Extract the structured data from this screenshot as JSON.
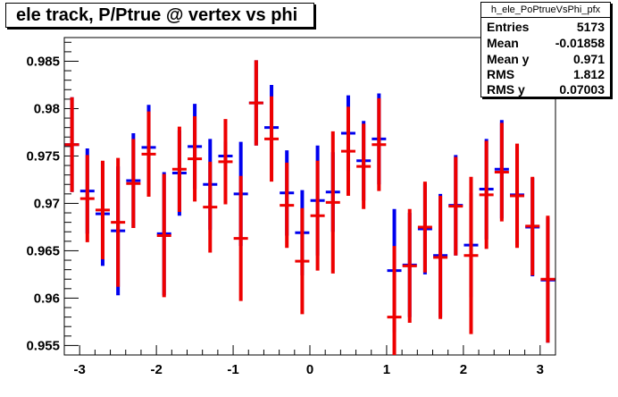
{
  "title": "ele track, P/Ptrue @ vertex vs phi",
  "stats": {
    "name": "h_ele_PoPtrueVsPhi_pfx",
    "rows": [
      {
        "label": "Entries",
        "value": "5173"
      },
      {
        "label": "Mean",
        "value": "-0.01858"
      },
      {
        "label": "Mean y",
        "value": "0.971"
      },
      {
        "label": "RMS",
        "value": "1.812"
      },
      {
        "label": "RMS y",
        "value": "0.07003"
      }
    ]
  },
  "chart_data": {
    "type": "scatter",
    "title": "ele track, P/Ptrue @ vertex vs phi",
    "xlabel": "",
    "ylabel": "",
    "xlim": [
      -3.2,
      3.2
    ],
    "ylim": [
      0.954,
      0.9875
    ],
    "xticks": [
      "-3",
      "-2",
      "-1",
      "0",
      "1",
      "2",
      "3"
    ],
    "yticks": [
      "0.955",
      "0.96",
      "0.965",
      "0.97",
      "0.975",
      "0.98",
      "0.985"
    ],
    "grid": false,
    "series": [
      {
        "color": "#0000ee",
        "x": [
          -3.1,
          -2.9,
          -2.7,
          -2.5,
          -2.3,
          -2.1,
          -1.9,
          -1.7,
          -1.5,
          -1.3,
          -1.1,
          -0.9,
          -0.7,
          -0.5,
          -0.3,
          -0.1,
          0.1,
          0.3,
          0.5,
          0.7,
          0.9,
          1.1,
          1.3,
          1.5,
          1.7,
          1.9,
          2.1,
          2.3,
          2.5,
          2.7,
          2.9,
          3.1
        ],
        "y": [
          0.9762,
          0.9713,
          0.9689,
          0.9671,
          0.9724,
          0.9759,
          0.9668,
          0.9732,
          0.976,
          0.972,
          0.975,
          0.971,
          0.9806,
          0.978,
          0.9711,
          0.9669,
          0.9703,
          0.9712,
          0.9774,
          0.9745,
          0.9768,
          0.9629,
          0.9635,
          0.9673,
          0.9645,
          0.9698,
          0.9656,
          0.9715,
          0.9736,
          0.9709,
          0.9675,
          0.9619
        ],
        "err": [
          0.005,
          0.0045,
          0.0055,
          0.0068,
          0.005,
          0.0045,
          0.0065,
          0.0045,
          0.0045,
          0.0048,
          0.0015,
          0.0055,
          0.0045,
          0.0045,
          0.0045,
          0.0045,
          0.0058,
          0.0042,
          0.004,
          0.0042,
          0.0048,
          0.0065,
          0.0055,
          0.0048,
          0.0065,
          0.0053,
          0.0055,
          0.0053,
          0.0052,
          0.0053,
          0.0052,
          0.0066
        ]
      },
      {
        "color": "#ee0000",
        "x": [
          -3.1,
          -2.9,
          -2.7,
          -2.5,
          -2.3,
          -2.1,
          -1.9,
          -1.7,
          -1.5,
          -1.3,
          -1.1,
          -0.9,
          -0.7,
          -0.5,
          -0.3,
          -0.1,
          0.1,
          0.3,
          0.5,
          0.7,
          0.9,
          1.1,
          1.3,
          1.5,
          1.7,
          1.9,
          2.1,
          2.3,
          2.5,
          2.7,
          2.9,
          3.1
        ],
        "y": [
          0.9762,
          0.9705,
          0.9693,
          0.968,
          0.9721,
          0.9752,
          0.9666,
          0.9736,
          0.9747,
          0.9696,
          0.9744,
          0.9663,
          0.9806,
          0.9768,
          0.9698,
          0.9639,
          0.9687,
          0.9701,
          0.9755,
          0.9739,
          0.9762,
          0.958,
          0.9634,
          0.9675,
          0.9643,
          0.9697,
          0.9645,
          0.9709,
          0.9733,
          0.9708,
          0.9676,
          0.962
        ],
        "err": [
          0.005,
          0.0046,
          0.0052,
          0.0068,
          0.0047,
          0.0045,
          0.0065,
          0.0045,
          0.0045,
          0.0048,
          0.0045,
          0.0066,
          0.0045,
          0.0045,
          0.0045,
          0.0056,
          0.0058,
          0.0075,
          0.0047,
          0.0045,
          0.0049,
          0.0075,
          0.006,
          0.0048,
          0.0065,
          0.0052,
          0.0083,
          0.0057,
          0.0052,
          0.0055,
          0.0052,
          0.0067
        ]
      }
    ]
  }
}
